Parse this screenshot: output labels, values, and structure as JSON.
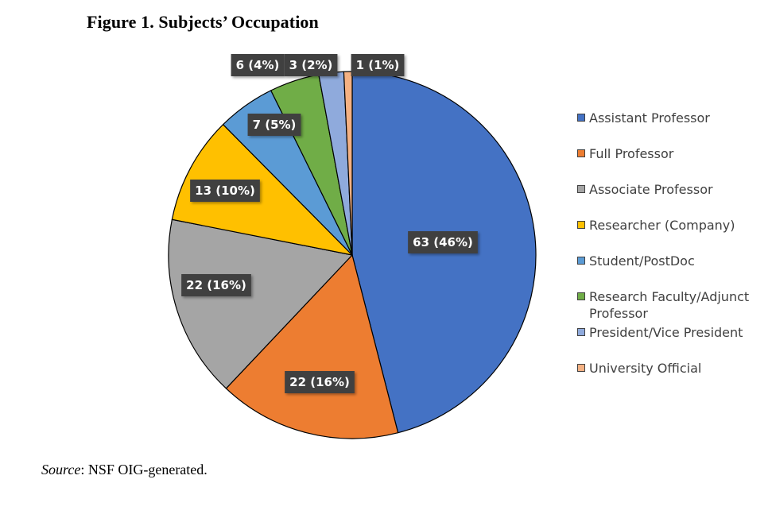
{
  "figure": {
    "title": "Figure 1. Subjects’ Occupation"
  },
  "source": {
    "label": "Source",
    "text": ": NSF OIG-generated."
  },
  "chart_data": {
    "type": "pie",
    "title": "Figure 1. Subjects’ Occupation",
    "legend_position": "right",
    "slices": [
      {
        "name": "Assistant Professor",
        "value": 63,
        "label": "63 (46%)",
        "color": "#4472C4"
      },
      {
        "name": "Full Professor",
        "value": 22,
        "label": "22 (16%)",
        "color": "#ED7D31"
      },
      {
        "name": "Associate Professor",
        "value": 22,
        "label": "22 (16%)",
        "color": "#A5A5A5"
      },
      {
        "name": "Researcher (Company)",
        "value": 13,
        "label": "13 (10%)",
        "color": "#FFC000"
      },
      {
        "name": "Student/PostDoc",
        "value": 7,
        "label": "7 (5%)",
        "color": "#5B9BD5"
      },
      {
        "name": "Research Faculty/Adjunct Professor",
        "value": 6,
        "label": "6 (4%)",
        "color": "#70AD47"
      },
      {
        "name": "President/Vice President",
        "value": 3,
        "label": "3 (2%)",
        "color": "#8FAADC"
      },
      {
        "name": "University Official",
        "value": 1,
        "label": "1 (1%)",
        "color": "#F4B183"
      }
    ]
  }
}
